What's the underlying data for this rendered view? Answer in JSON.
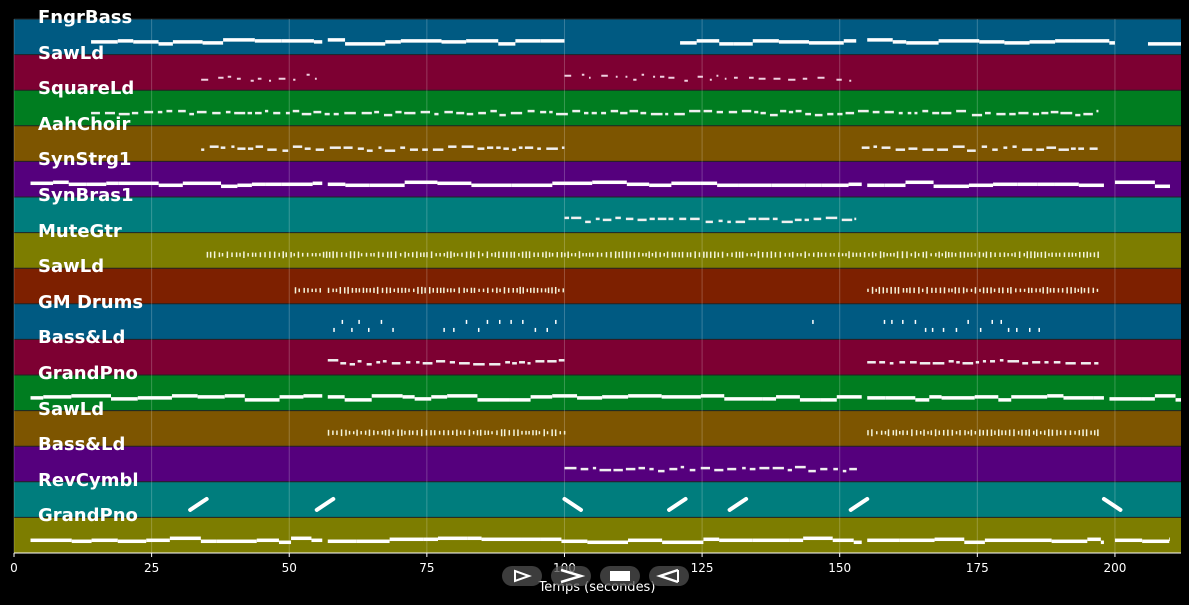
{
  "chart_data": {
    "type": "piano-roll",
    "xlabel": "Temps (secondes)",
    "xlim": [
      0,
      212
    ],
    "xticks": [
      0,
      25,
      50,
      75,
      100,
      125,
      150,
      175,
      200
    ],
    "grid": true,
    "tracks": [
      {
        "name": "FngrBass",
        "color": "#005a82",
        "style": "solid",
        "segments": [
          [
            14,
            56
          ],
          [
            57,
            100
          ],
          [
            121,
            153
          ],
          [
            155,
            200
          ],
          [
            206,
            212
          ]
        ]
      },
      {
        "name": "SawLd",
        "color": "#7d0032",
        "style": "dots",
        "segments": [
          [
            34,
            55
          ],
          [
            100,
            153
          ]
        ]
      },
      {
        "name": "SquareLd",
        "color": "#007d20",
        "style": "dashed",
        "segments": [
          [
            14,
            197
          ]
        ]
      },
      {
        "name": "AahChoir",
        "color": "#7d5500",
        "style": "dashed",
        "segments": [
          [
            34,
            100
          ],
          [
            154,
            197
          ]
        ]
      },
      {
        "name": "SynStrg1",
        "color": "#55007d",
        "style": "solid",
        "segments": [
          [
            3,
            56
          ],
          [
            57,
            154
          ],
          [
            155,
            198
          ],
          [
            200,
            210
          ]
        ]
      },
      {
        "name": "SynBras1",
        "color": "#007d7d",
        "style": "dashed",
        "segments": [
          [
            100,
            153
          ]
        ]
      },
      {
        "name": "MuteGtr",
        "color": "#7d7d00",
        "style": "ticks",
        "segments": [
          [
            35,
            197
          ]
        ]
      },
      {
        "name": "SawLd",
        "color": "#7d2000",
        "style": "ticks",
        "segments": [
          [
            51,
            56
          ],
          [
            57,
            100
          ],
          [
            155,
            197
          ]
        ]
      },
      {
        "name": "GM Drums",
        "color": "#005a82",
        "style": "sparse",
        "segments": [
          [
            58,
            69
          ],
          [
            78,
            99
          ],
          [
            145,
            146
          ],
          [
            158,
            188
          ]
        ]
      },
      {
        "name": "Bass&Ld",
        "color": "#7d0032",
        "style": "dashed",
        "segments": [
          [
            57,
            100
          ],
          [
            155,
            197
          ]
        ]
      },
      {
        "name": "GrandPno",
        "color": "#007d20",
        "style": "solid",
        "segments": [
          [
            3,
            56
          ],
          [
            57,
            154
          ],
          [
            155,
            198
          ],
          [
            199,
            212
          ]
        ]
      },
      {
        "name": "SawLd",
        "color": "#7d5500",
        "style": "ticks",
        "segments": [
          [
            57,
            100
          ],
          [
            155,
            197
          ]
        ]
      },
      {
        "name": "Bass&Ld",
        "color": "#55007d",
        "style": "dashed",
        "segments": [
          [
            100,
            154
          ]
        ]
      },
      {
        "name": "RevCymbl",
        "color": "#007d7d",
        "style": "glide",
        "segments": [
          [
            32,
            35
          ],
          [
            55,
            58
          ],
          [
            100,
            103
          ],
          [
            119,
            122
          ],
          [
            130,
            133
          ],
          [
            152,
            155
          ],
          [
            198,
            201
          ]
        ]
      },
      {
        "name": "GrandPno",
        "color": "#7d7d00",
        "style": "solid",
        "segments": [
          [
            3,
            56
          ],
          [
            57,
            154
          ],
          [
            155,
            198
          ],
          [
            200,
            210
          ]
        ]
      }
    ]
  },
  "controls": {
    "play": "play-outline",
    "forward": "fast-forward",
    "stop": "stop",
    "rewind": "rewind"
  }
}
